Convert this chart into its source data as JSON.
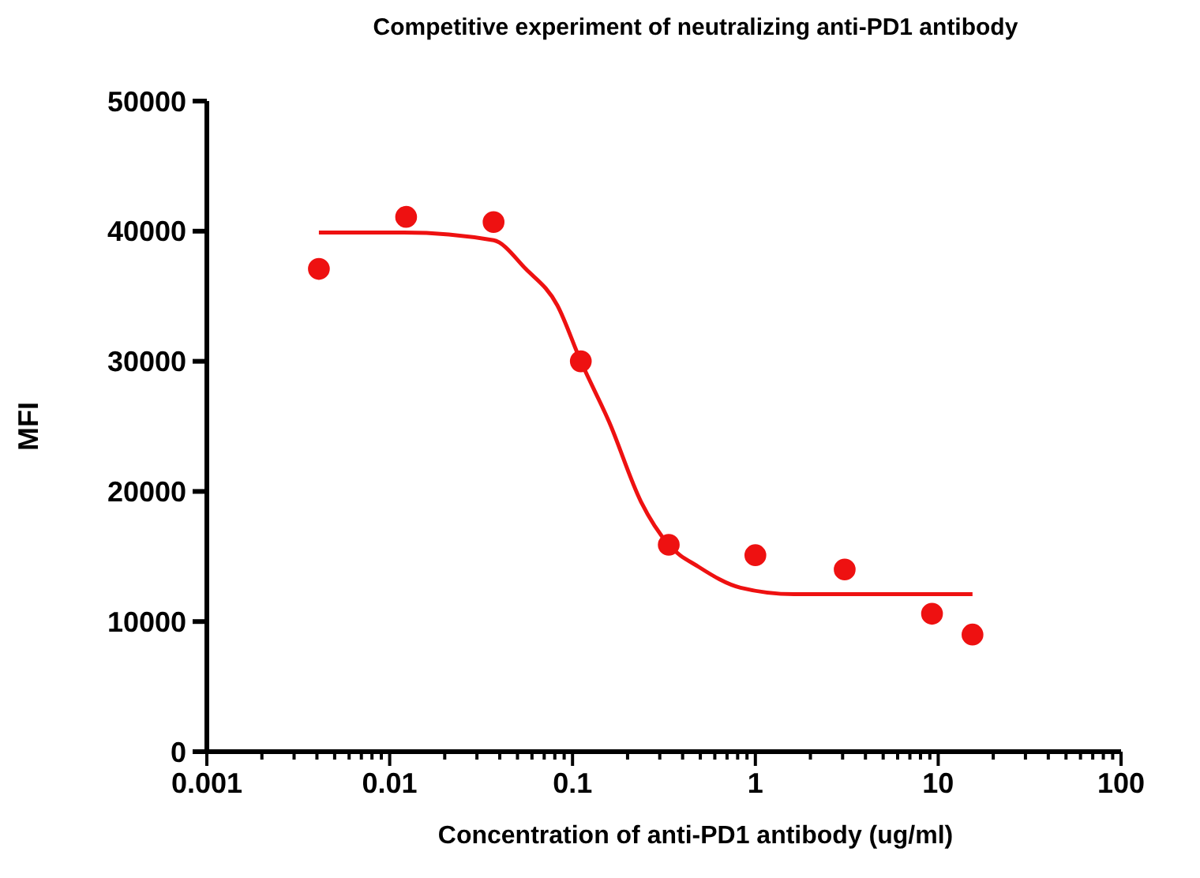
{
  "chart_data": {
    "type": "scatter",
    "title": "Competitive experiment of neutralizing anti-PD1 antibody",
    "xlabel": "Concentration of anti-PD1 antibody (ug/ml)",
    "ylabel": "MFI",
    "log": "x",
    "grid": false,
    "legend": false,
    "xlim": [
      0.001,
      100
    ],
    "ylim": [
      0,
      50000
    ],
    "xticks": [
      {
        "value": 0.001,
        "label": "0.001"
      },
      {
        "value": 0.002,
        "label": null
      },
      {
        "value": 0.003,
        "label": null
      },
      {
        "value": 0.004,
        "label": null
      },
      {
        "value": 0.005,
        "label": null
      },
      {
        "value": 0.006,
        "label": null
      },
      {
        "value": 0.007,
        "label": null
      },
      {
        "value": 0.008,
        "label": null
      },
      {
        "value": 0.009,
        "label": null
      },
      {
        "value": 0.01,
        "label": "0.01"
      },
      {
        "value": 0.02,
        "label": null
      },
      {
        "value": 0.03,
        "label": null
      },
      {
        "value": 0.04,
        "label": null
      },
      {
        "value": 0.05,
        "label": null
      },
      {
        "value": 0.06,
        "label": null
      },
      {
        "value": 0.07,
        "label": null
      },
      {
        "value": 0.08,
        "label": null
      },
      {
        "value": 0.09,
        "label": null
      },
      {
        "value": 0.1,
        "label": "0.1"
      },
      {
        "value": 0.2,
        "label": null
      },
      {
        "value": 0.3,
        "label": null
      },
      {
        "value": 0.4,
        "label": null
      },
      {
        "value": 0.5,
        "label": null
      },
      {
        "value": 0.6,
        "label": null
      },
      {
        "value": 0.7,
        "label": null
      },
      {
        "value": 0.8,
        "label": null
      },
      {
        "value": 0.9,
        "label": null
      },
      1,
      {
        "value": 2,
        "label": null
      },
      {
        "value": 3,
        "label": null
      },
      {
        "value": 4,
        "label": null
      },
      {
        "value": 5,
        "label": null
      },
      {
        "value": 6,
        "label": null
      },
      {
        "value": 7,
        "label": null
      },
      {
        "value": 8,
        "label": null
      },
      {
        "value": 9,
        "label": null
      },
      10,
      {
        "value": 20,
        "label": null
      },
      {
        "value": 30,
        "label": null
      },
      {
        "value": 40,
        "label": null
      },
      {
        "value": 50,
        "label": null
      },
      {
        "value": 60,
        "label": null
      },
      {
        "value": 70,
        "label": null
      },
      {
        "value": 80,
        "label": null
      },
      {
        "value": 90,
        "label": null
      },
      100
    ],
    "yticks": [
      0,
      10000,
      20000,
      30000,
      40000,
      50000
    ],
    "series": [
      {
        "color": "#ee1111",
        "marker": "circle",
        "x": [
          0.0041,
          0.0123,
          0.037,
          0.111,
          0.336,
          1.0,
          3.08,
          9.25,
          15.4
        ],
        "values": [
          37100,
          41100,
          40700,
          30000,
          15900,
          15100,
          14000,
          10600,
          9000
        ]
      },
      {
        "type": "line",
        "color": "#ee1111",
        "marker": "none",
        "line_style": "solid",
        "x": [
          0.0041,
          0.012,
          0.037,
          0.0555,
          0.0826,
          0.111,
          0.159,
          0.237,
          0.336,
          0.49,
          0.83,
          1.63,
          15.4
        ],
        "values": [
          39900,
          39900,
          39300,
          37100,
          34300,
          30000,
          25300,
          19200,
          15900,
          14200,
          12600,
          12100,
          12100
        ]
      }
    ]
  }
}
